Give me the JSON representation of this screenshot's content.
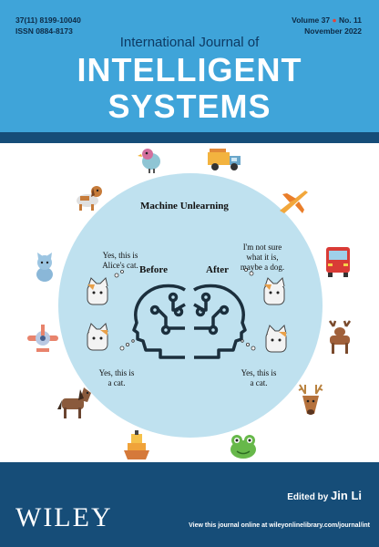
{
  "cover": {
    "issn_code": "37(11) 8199-10040",
    "issn": "ISSN 0884-8173",
    "volume_label": "Volume 37",
    "issue_label": "No. 11",
    "issue_date": "November 2022",
    "title_line1": "International Journal of",
    "title_line2": "INTELLIGENT",
    "title_line3": "SYSTEMS"
  },
  "illustration": {
    "heading": "Machine Unlearning",
    "before_label": "Before",
    "after_label": "After",
    "before_top_note": [
      "Yes, this is",
      "Alice's cat."
    ],
    "before_bottom_note": [
      "Yes, this is",
      "a cat."
    ],
    "after_top_note": [
      "I'm not sure",
      "what it is,",
      "maybe a dog."
    ],
    "after_bottom_note": [
      "Yes, this is",
      "a cat."
    ],
    "icons": [
      "bird-icon",
      "truck-icon",
      "dog-icon",
      "airplane-icon",
      "cat-icon",
      "truck-front-icon",
      "plane-front-icon",
      "deer-icon",
      "horse-icon",
      "reindeer-icon",
      "ship-icon",
      "frog-icon"
    ]
  },
  "footer": {
    "publisher": "WILEY",
    "edited_by": "Edited by",
    "editor": "Jin Li",
    "online_note": "View this journal online at wileyonlinelibrary.com/journal/int"
  },
  "colors": {
    "header_blue": "#3fa4d9",
    "navy": "#164d78",
    "circle": "#bfe1ef",
    "bullet": "#e8443a"
  }
}
